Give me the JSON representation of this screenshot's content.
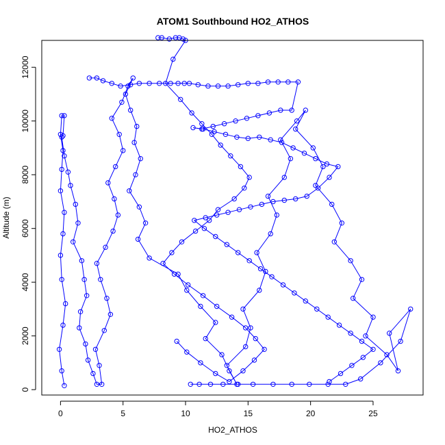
{
  "chart_data": {
    "type": "line",
    "title": "ATOM1 Southbound HO2_ATHOS",
    "xlabel": "HO2_ATHOS",
    "ylabel": "Altitude (m)",
    "xlim": [
      -1.5,
      29.0
    ],
    "ylim": [
      -200,
      13000
    ],
    "x_ticks": [
      0,
      5,
      10,
      15,
      20,
      25
    ],
    "y_ticks": [
      0,
      2000,
      4000,
      6000,
      8000,
      10000,
      12000
    ],
    "grid": false,
    "legend": "none",
    "series": [
      {
        "color": "#0000ff",
        "marker": "open-circle",
        "x": [
          0.3,
          0.1,
          -0.1,
          0.2,
          0.4,
          0.1,
          0.0,
          0.2,
          0.3,
          0.0,
          0.1,
          0.2,
          0.0,
          0.1,
          0.3,
          0.2,
          0.1,
          0.3,
          0.6,
          0.8,
          1.2,
          1.4,
          1.0,
          1.7,
          1.9,
          2.1,
          1.6,
          1.5,
          2.0,
          2.2,
          2.6,
          2.9,
          3.3,
          3.1,
          2.8,
          3.5,
          4.0,
          3.7,
          3.2,
          2.9,
          3.6,
          4.2,
          4.6,
          4.3,
          3.8,
          4.4,
          5.0,
          4.7,
          4.1,
          4.9,
          5.4,
          5.8,
          5.2,
          5.6,
          6.1,
          5.9,
          6.4,
          6.0,
          5.5,
          6.3,
          6.8,
          6.2,
          7.1,
          9.4,
          10.1,
          11.2,
          12.4,
          11.6,
          12.9,
          13.5,
          14.1,
          13.3,
          14.8,
          15.2,
          14.6,
          15.9,
          16.4,
          15.7,
          16.8,
          17.3,
          16.6,
          17.9,
          18.4,
          17.6,
          18.9,
          19.6,
          18.8,
          20.2,
          21.0,
          20.4,
          21.7,
          22.5,
          21.9,
          23.2,
          24.1,
          23.4,
          25.0,
          24.4,
          26.1,
          27.0,
          26.3,
          28.0,
          27.2,
          25.6,
          24.0,
          22.8,
          21.4,
          19.9,
          18.5,
          17.0,
          15.4,
          14.2,
          13.0,
          12.0,
          11.1,
          10.4
        ],
        "y": [
          150,
          700,
          1500,
          2400,
          3200,
          4100,
          5000,
          5800,
          6600,
          7400,
          8200,
          8900,
          9500,
          10200,
          10200,
          9450,
          9400,
          8700,
          8100,
          7600,
          6900,
          6200,
          5500,
          4800,
          4100,
          3500,
          2900,
          2300,
          1700,
          1100,
          600,
          200,
          200,
          900,
          1500,
          2200,
          2800,
          3400,
          4100,
          4700,
          5300,
          5900,
          6500,
          7100,
          7700,
          8300,
          8900,
          9500,
          10100,
          10700,
          11300,
          11600,
          11000,
          10400,
          9800,
          9200,
          8600,
          8000,
          7400,
          6800,
          6200,
          5600,
          4900,
          4300,
          3700,
          3100,
          2500,
          1900,
          1300,
          700,
          200,
          900,
          1600,
          2300,
          3000,
          3700,
          4400,
          5100,
          5800,
          6500,
          7200,
          7900,
          8600,
          9300,
          10000,
          10400,
          9700,
          9000,
          8300,
          7600,
          6900,
          6200,
          5500,
          4800,
          4100,
          3400,
          2700,
          2000,
          1300,
          700,
          2100,
          3000,
          1800,
          1000,
          400,
          200,
          200,
          200,
          200,
          200,
          200,
          200,
          200,
          200,
          200,
          200
        ]
      },
      {
        "color": "#0000ff",
        "marker": "open-circle",
        "x": [
          2.3,
          2.9,
          3.4,
          4.1,
          4.8,
          5.6,
          6.3,
          7.1,
          7.9,
          8.8,
          9.4,
          9.9,
          10.3,
          11.0,
          11.8,
          12.6,
          13.4,
          14.2,
          15.0,
          15.8,
          16.6,
          17.4,
          18.2,
          19.0,
          18.5,
          17.6,
          16.7,
          15.8,
          14.9,
          14.0,
          13.1,
          12.2,
          11.3,
          10.6,
          11.4,
          12.3,
          13.2,
          14.1,
          15.0,
          15.9,
          16.8,
          17.7,
          18.6,
          19.5,
          20.4,
          21.3,
          22.2,
          21.5,
          20.6,
          19.7,
          18.8,
          17.9,
          17.0,
          16.1,
          15.2,
          14.3,
          13.4,
          12.5,
          11.6,
          10.7,
          11.5,
          12.4,
          13.3,
          14.2,
          15.1,
          16.0,
          16.9,
          17.8,
          18.7,
          19.6,
          20.5,
          21.4,
          22.3,
          23.2,
          24.1,
          25.0,
          24.2,
          23.3,
          22.4,
          21.5
        ],
        "y": [
          11600,
          11600,
          11500,
          11400,
          11300,
          11350,
          11400,
          11400,
          11400,
          11400,
          11400,
          11400,
          11400,
          11350,
          11300,
          11300,
          11300,
          11350,
          11400,
          11400,
          11450,
          11450,
          11450,
          11450,
          10400,
          10400,
          10300,
          10200,
          10100,
          10000,
          9900,
          9800,
          9700,
          9750,
          9700,
          9600,
          9500,
          9400,
          9350,
          9400,
          9300,
          9200,
          9000,
          8800,
          8600,
          8400,
          8300,
          7900,
          7500,
          7200,
          7100,
          7050,
          7000,
          6900,
          6800,
          6700,
          6600,
          6500,
          6400,
          6300,
          6000,
          5700,
          5400,
          5100,
          4800,
          4500,
          4200,
          3900,
          3600,
          3300,
          3000,
          2700,
          2400,
          2100,
          1800,
          1500,
          1200,
          900,
          600,
          300
        ]
      },
      {
        "color": "#0000ff",
        "marker": "open-circle",
        "x": [
          7.8,
          8.1,
          8.7,
          9.2,
          9.5,
          9.8,
          10.0,
          9.0,
          8.4,
          9.6,
          10.5,
          11.3,
          12.1,
          12.8,
          13.6,
          14.4,
          15.1,
          14.7,
          13.9,
          12.6,
          11.9,
          10.8,
          9.7,
          8.9,
          8.2,
          9.1,
          10.2,
          11.4,
          12.5,
          13.7,
          14.8,
          15.6,
          16.3,
          15.5,
          14.6,
          13.5,
          12.4,
          11.2,
          10.1,
          9.3
        ],
        "y": [
          13100,
          13100,
          13050,
          13100,
          13100,
          13050,
          13000,
          12300,
          11400,
          10800,
          10300,
          9900,
          9500,
          9100,
          8700,
          8300,
          7900,
          7500,
          7100,
          6700,
          6300,
          5900,
          5500,
          5100,
          4700,
          4300,
          3900,
          3500,
          3100,
          2700,
          2300,
          1900,
          1500,
          1100,
          700,
          300,
          600,
          1000,
          1400,
          1800
        ]
      }
    ]
  }
}
